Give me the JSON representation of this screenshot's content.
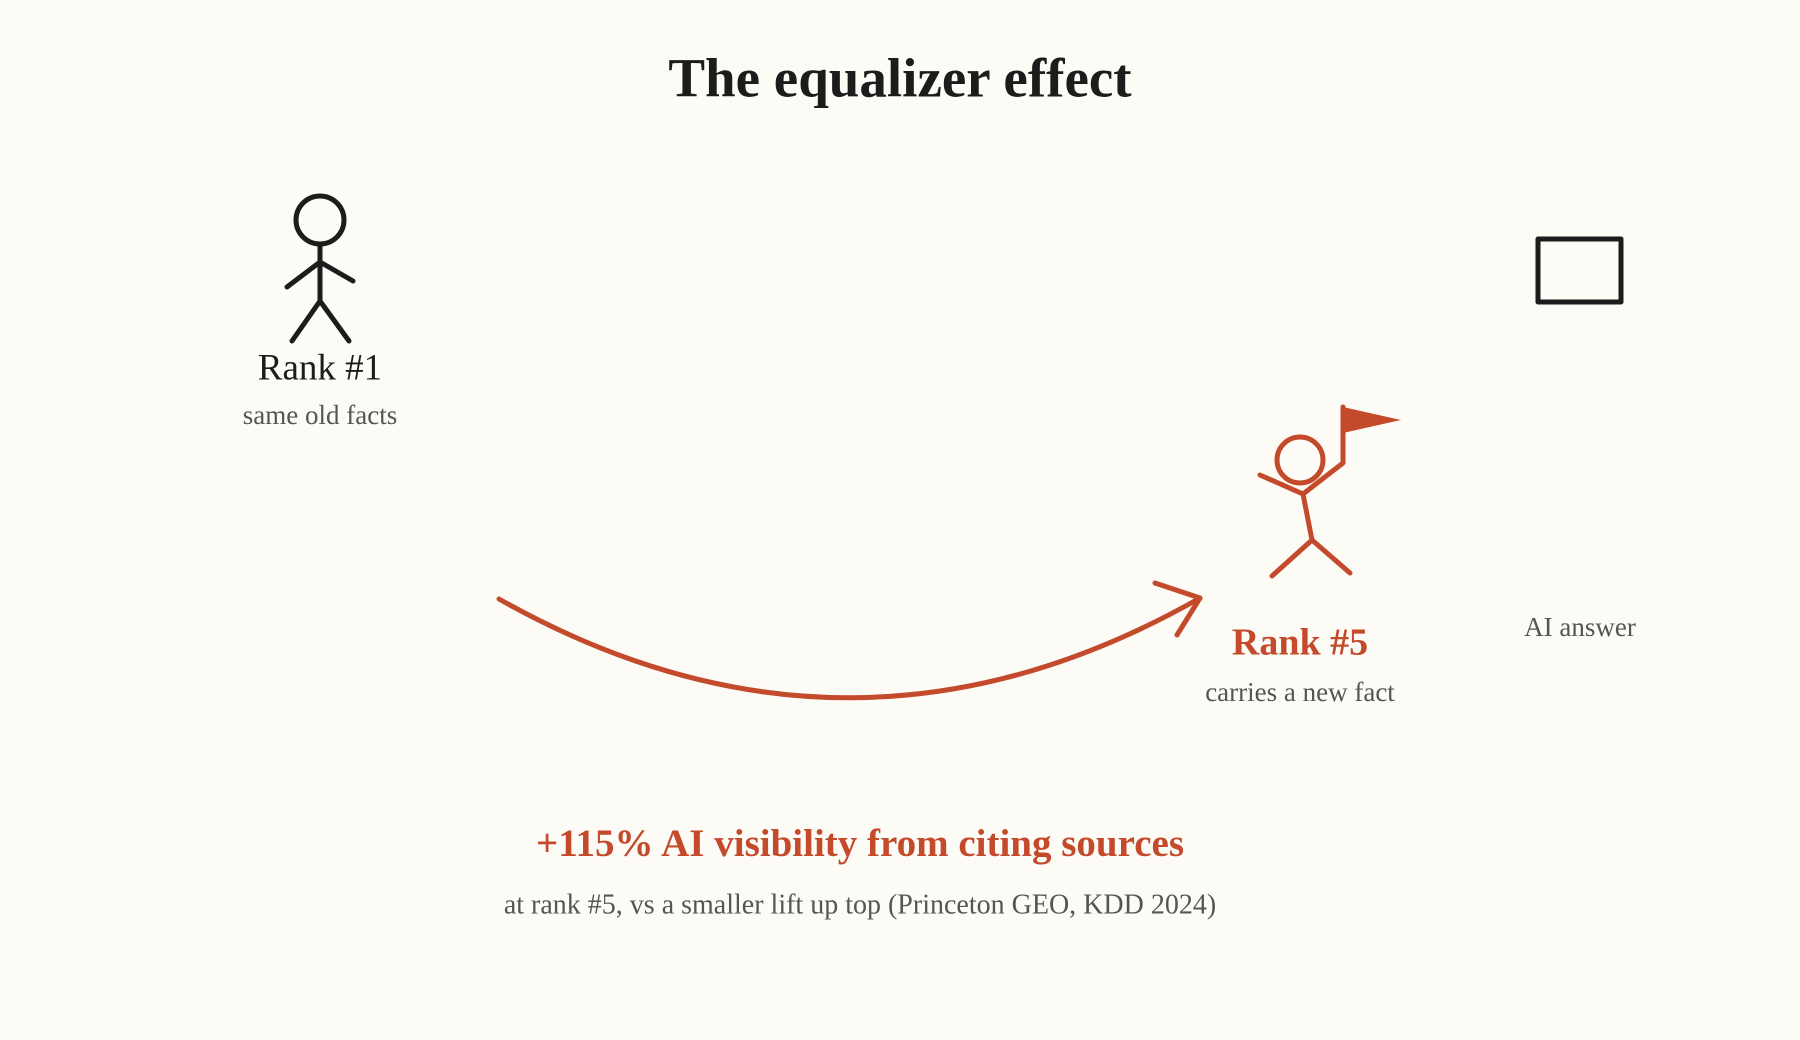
{
  "title": "The equalizer effect",
  "figures": [
    {
      "label": "Rank #1",
      "caption": "same old facts"
    },
    {
      "label": "Rank #5",
      "caption": "carries a new fact"
    }
  ],
  "target": {
    "label": "AI answer"
  },
  "stat": {
    "headline": "+115% AI visibility from citing sources",
    "source": "at rank #5, vs a smaller lift up top (Princeton GEO, KDD 2024)"
  }
}
